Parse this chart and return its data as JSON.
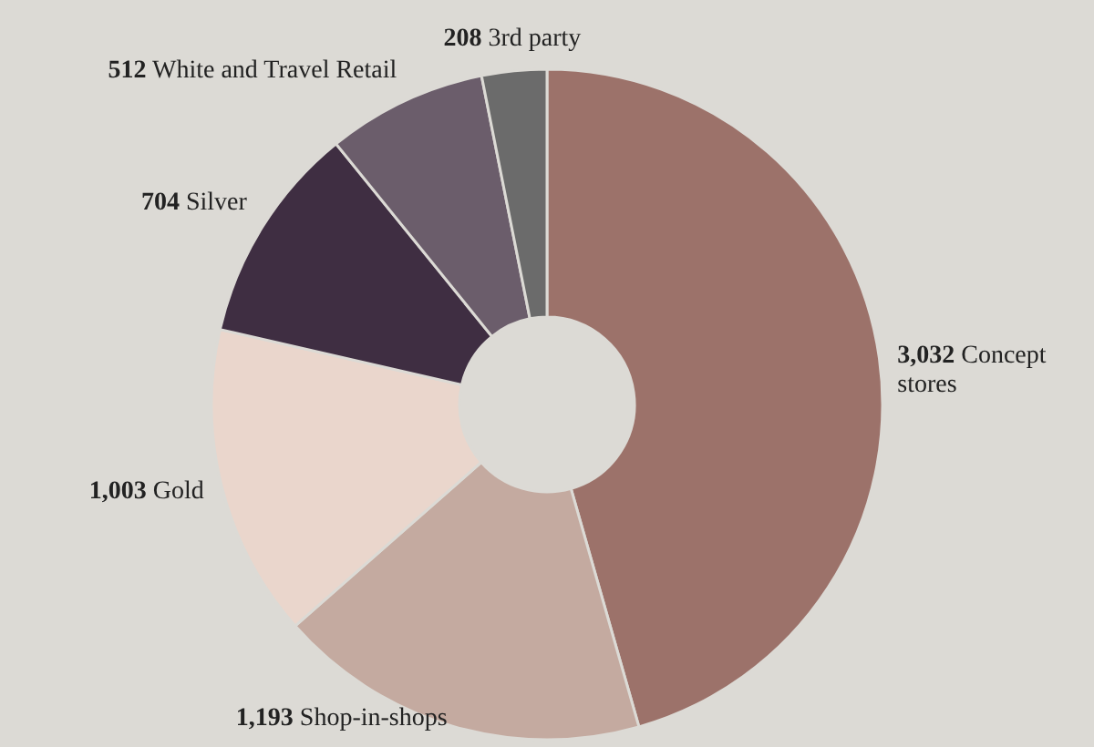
{
  "chart_data": {
    "type": "donut",
    "categories": [
      "Concept stores",
      "Shop-in-shops",
      "Gold",
      "Silver",
      "White and Travel Retail",
      "3rd party"
    ],
    "values": [
      3032,
      1193,
      1003,
      704,
      512,
      208
    ],
    "colors": [
      "#9c726a",
      "#c4aaa0",
      "#ead6cc",
      "#3f2e42",
      "#6b5d6b",
      "#6b6b6b"
    ],
    "value_labels": [
      "3,032",
      "1,193",
      "1,003",
      "704",
      "512",
      "208"
    ]
  }
}
